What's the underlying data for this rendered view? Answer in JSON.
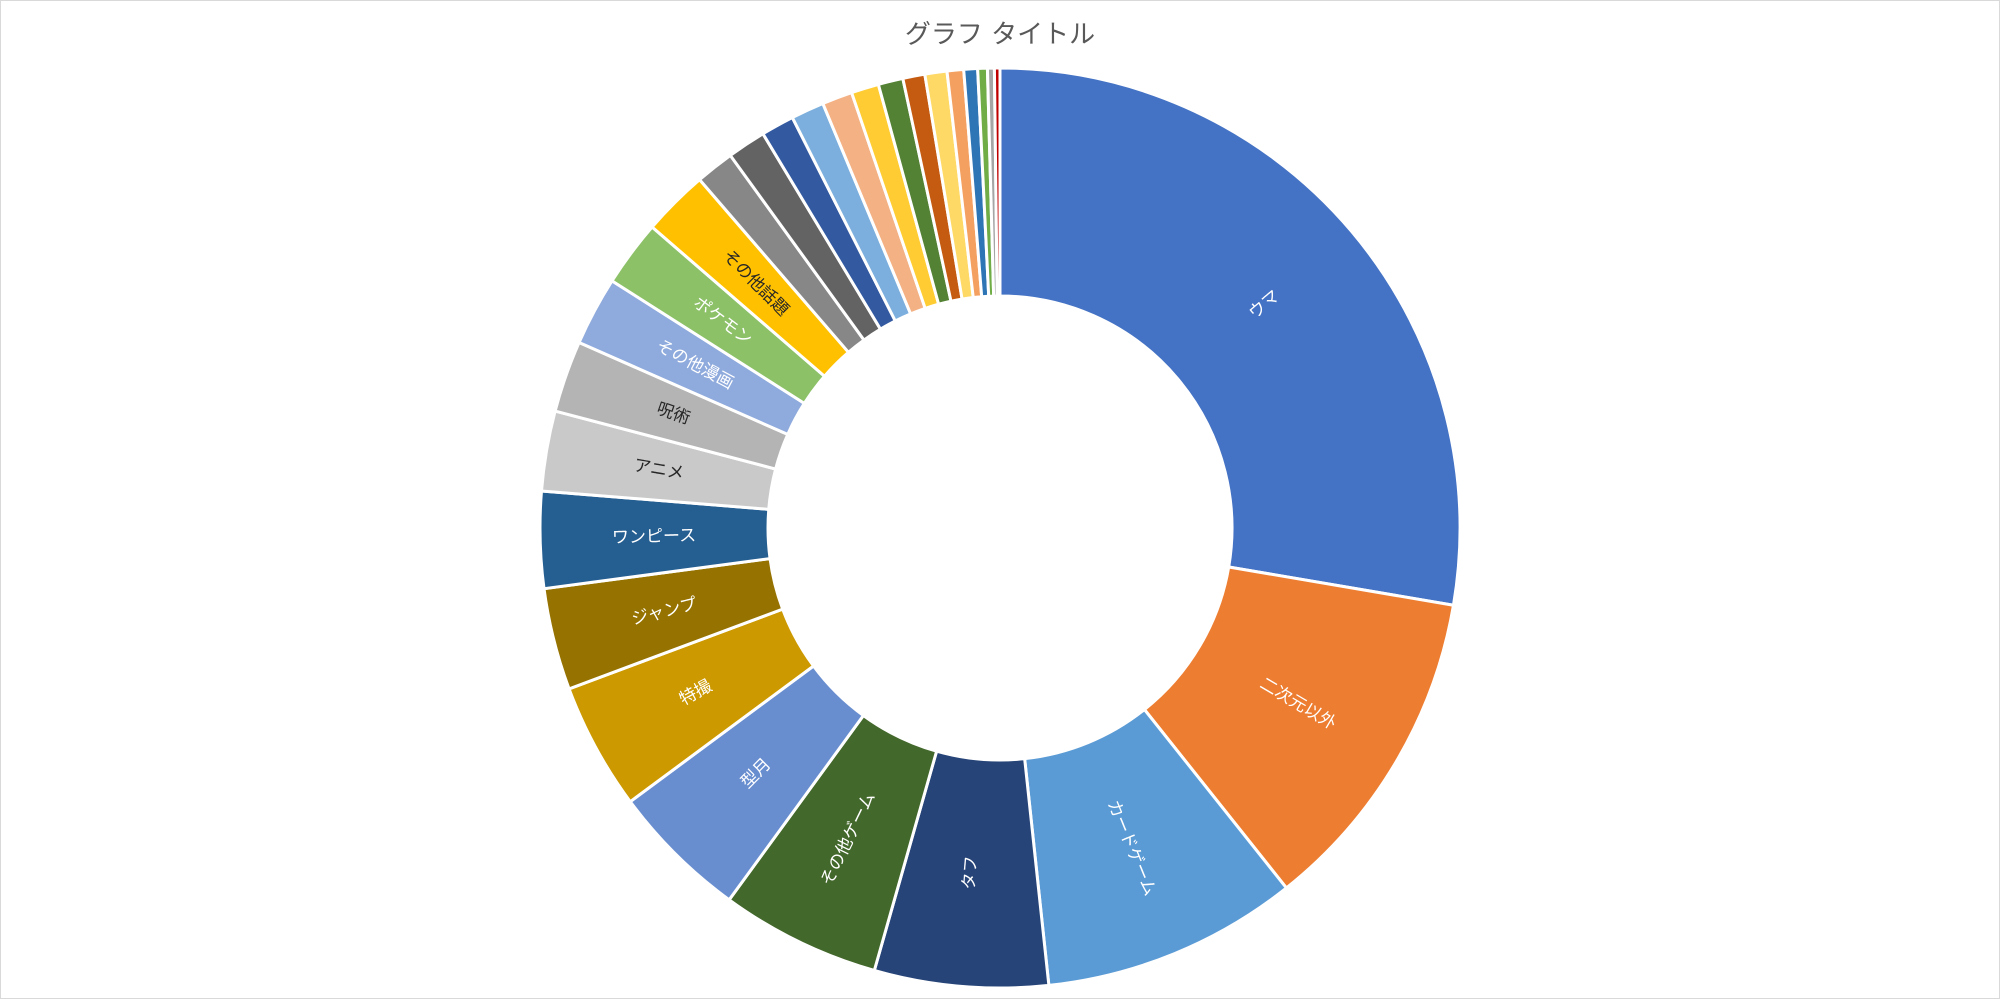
{
  "chart_data": {
    "type": "pie",
    "variant": "doughnut",
    "title": "グラフ タイトル",
    "legend": "none",
    "slices": [
      {
        "label": "ウマ",
        "value": 28.6,
        "color": "#4472C4",
        "label_color": "#ffffff"
      },
      {
        "label": "二次元以外",
        "value": 12.0,
        "color": "#ED7D31",
        "label_color": "#ffffff"
      },
      {
        "label": "カードゲーム",
        "value": 9.3,
        "color": "#5B9BD5",
        "label_color": "#ffffff"
      },
      {
        "label": "タフ",
        "value": 6.3,
        "color": "#264478",
        "label_color": "#ffffff"
      },
      {
        "label": "その他ゲーム",
        "value": 5.8,
        "color": "#43682B",
        "label_color": "#ffffff"
      },
      {
        "label": "型月",
        "value": 5.0,
        "color": "#698ED0",
        "label_color": "#ffffff"
      },
      {
        "label": "特撮",
        "value": 4.6,
        "color": "#CC9900",
        "label_color": "#ffffff"
      },
      {
        "label": "ジャンプ",
        "value": 3.7,
        "color": "#967300",
        "label_color": "#ffffff"
      },
      {
        "label": "ワンピース",
        "value": 3.5,
        "color": "#255E91",
        "label_color": "#ffffff"
      },
      {
        "label": "アニメ",
        "value": 2.9,
        "color": "#C9C9C9",
        "label_color": "#262626"
      },
      {
        "label": "呪術",
        "value": 2.6,
        "color": "#B4B4B4",
        "label_color": "#262626"
      },
      {
        "label": "その他漫画",
        "value": 2.5,
        "color": "#8FAADC",
        "label_color": "#ffffff"
      },
      {
        "label": "ポケモン",
        "value": 2.4,
        "color": "#8CC168",
        "label_color": "#ffffff"
      },
      {
        "label": "その他話題",
        "value": 2.4,
        "color": "#FFC000",
        "label_color": "#262626"
      },
      {
        "label": "",
        "value": 1.4,
        "color": "#878787",
        "label_color": "#ffffff"
      },
      {
        "label": "",
        "value": 1.4,
        "color": "#636363",
        "label_color": "#ffffff"
      },
      {
        "label": "",
        "value": 1.2,
        "color": "#335AA1",
        "label_color": "#ffffff"
      },
      {
        "label": "",
        "value": 1.2,
        "color": "#7CAFDD",
        "label_color": "#ffffff"
      },
      {
        "label": "",
        "value": 1.1,
        "color": "#F4B183",
        "label_color": "#ffffff"
      },
      {
        "label": "",
        "value": 1.0,
        "color": "#FFCD33",
        "label_color": "#ffffff"
      },
      {
        "label": "",
        "value": 0.9,
        "color": "#548235",
        "label_color": "#ffffff"
      },
      {
        "label": "",
        "value": 0.8,
        "color": "#C55A11",
        "label_color": "#ffffff"
      },
      {
        "label": "",
        "value": 0.8,
        "color": "#FFD966",
        "label_color": "#ffffff"
      },
      {
        "label": "",
        "value": 0.6,
        "color": "#F4A060",
        "label_color": "#ffffff"
      },
      {
        "label": "",
        "value": 0.5,
        "color": "#2E75B6",
        "label_color": "#ffffff"
      },
      {
        "label": "",
        "value": 0.35,
        "color": "#70AD47",
        "label_color": "#ffffff"
      },
      {
        "label": "",
        "value": 0.25,
        "color": "#A5A5A5",
        "label_color": "#ffffff"
      },
      {
        "label": "",
        "value": 0.2,
        "color": "#C00000",
        "label_color": "#ffffff"
      }
    ]
  }
}
